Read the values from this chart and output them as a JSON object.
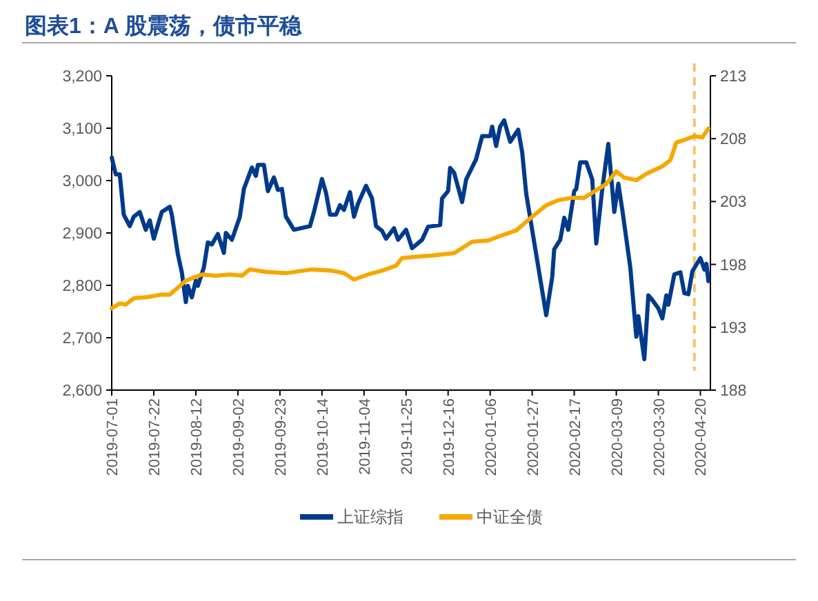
{
  "chart_data": {
    "type": "line",
    "title": "图表1：A 股震荡，债市平稳",
    "xlim": [
      "2019-07-01",
      "2020-04-25"
    ],
    "xticks": [
      "2019-07-01",
      "2019-07-22",
      "2019-08-12",
      "2019-09-02",
      "2019-09-23",
      "2019-10-14",
      "2019-11-04",
      "2019-11-25",
      "2019-12-16",
      "2020-01-06",
      "2020-01-27",
      "2020-02-17",
      "2020-03-09",
      "2020-03-30",
      "2020-04-20"
    ],
    "ylim": [
      2600,
      3200
    ],
    "yticks": [
      {
        "value": 2600,
        "label": "2,600"
      },
      {
        "value": 2700,
        "label": "2,700"
      },
      {
        "value": 2800,
        "label": "2,800"
      },
      {
        "value": 2900,
        "label": "2,900"
      },
      {
        "value": 3000,
        "label": "3,000"
      },
      {
        "value": 3100,
        "label": "3,100"
      },
      {
        "value": 3200,
        "label": "3,200"
      }
    ],
    "y2lim": [
      188,
      213
    ],
    "y2ticks": [
      188,
      193,
      198,
      203,
      208,
      213
    ],
    "legend": "bottom",
    "ref_lines": [
      {
        "axis": "x",
        "value": "2020-04-17",
        "color": "#f7c46c",
        "line_style": "dashed"
      }
    ],
    "series": [
      {
        "name": "上证综指",
        "color": "#003a8c",
        "x": [
          "2019-07-01",
          "2019-07-03",
          "2019-07-05",
          "2019-07-07",
          "2019-07-10",
          "2019-07-12",
          "2019-07-15",
          "2019-07-18",
          "2019-07-20",
          "2019-07-22",
          "2019-07-26",
          "2019-07-30",
          "2019-07-31",
          "2019-08-03",
          "2019-08-05",
          "2019-08-07",
          "2019-08-08",
          "2019-08-10",
          "2019-08-12",
          "2019-08-13",
          "2019-08-16",
          "2019-08-18",
          "2019-08-20",
          "2019-08-23",
          "2019-08-26",
          "2019-08-27",
          "2019-08-30",
          "2019-09-03",
          "2019-09-05",
          "2019-09-09",
          "2019-09-11",
          "2019-09-12",
          "2019-09-15",
          "2019-09-17",
          "2019-09-20",
          "2019-09-22",
          "2019-09-24",
          "2019-09-26",
          "2019-09-30",
          "2019-10-08",
          "2019-10-10",
          "2019-10-14",
          "2019-10-16",
          "2019-10-18",
          "2019-10-21",
          "2019-10-23",
          "2019-10-25",
          "2019-10-28",
          "2019-10-30",
          "2019-11-01",
          "2019-11-05",
          "2019-11-08",
          "2019-11-10",
          "2019-11-13",
          "2019-11-15",
          "2019-11-19",
          "2019-11-21",
          "2019-11-25",
          "2019-11-28",
          "2019-11-29",
          "2019-12-03",
          "2019-12-06",
          "2019-12-12",
          "2019-12-13",
          "2019-12-16",
          "2019-12-17",
          "2019-12-19",
          "2019-12-23",
          "2019-12-25",
          "2019-12-30",
          "2020-01-02",
          "2020-01-06",
          "2020-01-07",
          "2020-01-09",
          "2020-01-11",
          "2020-01-13",
          "2020-01-16",
          "2020-01-20",
          "2020-01-22",
          "2020-01-24",
          "2020-02-03",
          "2020-02-06",
          "2020-02-07",
          "2020-02-10",
          "2020-02-12",
          "2020-02-14",
          "2020-02-17",
          "2020-02-18",
          "2020-02-20",
          "2020-02-23",
          "2020-02-26",
          "2020-02-28",
          "2020-03-02",
          "2020-03-05",
          "2020-03-08",
          "2020-03-10",
          "2020-03-12",
          "2020-03-16",
          "2020-03-19",
          "2020-03-20",
          "2020-03-23",
          "2020-03-25",
          "2020-03-27",
          "2020-03-30",
          "2020-04-01",
          "2020-04-03",
          "2020-04-04",
          "2020-04-07",
          "2020-04-10",
          "2020-04-12",
          "2020-04-14",
          "2020-04-16",
          "2020-04-20",
          "2020-04-22",
          "2020-04-23",
          "2020-04-24"
        ],
        "values": [
          3044,
          3012,
          3012,
          2935,
          2913,
          2931,
          2940,
          2906,
          2924,
          2889,
          2940,
          2950,
          2935,
          2860,
          2825,
          2768,
          2799,
          2777,
          2809,
          2799,
          2834,
          2882,
          2878,
          2898,
          2862,
          2900,
          2887,
          2931,
          2984,
          3025,
          3009,
          3030,
          3030,
          2980,
          3006,
          2982,
          2984,
          2931,
          2906,
          2913,
          2940,
          3003,
          2977,
          2935,
          2935,
          2953,
          2944,
          2978,
          2931,
          2956,
          2990,
          2966,
          2913,
          2904,
          2889,
          2909,
          2887,
          2906,
          2871,
          2874,
          2887,
          2912,
          2915,
          2966,
          2980,
          3024,
          3015,
          2959,
          3002,
          3041,
          3085,
          3085,
          3103,
          3066,
          3103,
          3115,
          3074,
          3097,
          3054,
          2975,
          2743,
          2816,
          2869,
          2887,
          2929,
          2906,
          2980,
          2984,
          3035,
          3035,
          3002,
          2880,
          2984,
          3070,
          2940,
          2994,
          2944,
          2834,
          2702,
          2741,
          2659,
          2781,
          2772,
          2756,
          2737,
          2781,
          2763,
          2821,
          2825,
          2785,
          2783,
          2827,
          2852,
          2830,
          2841,
          2808
        ]
      },
      {
        "name": "中证全债",
        "color": "#f5a800",
        "axis": "y2",
        "x": [
          "2019-07-01",
          "2019-07-05",
          "2019-07-08",
          "2019-07-12",
          "2019-07-19",
          "2019-07-26",
          "2019-07-30",
          "2019-08-07",
          "2019-08-15",
          "2019-08-22",
          "2019-08-29",
          "2019-09-04",
          "2019-09-08",
          "2019-09-16",
          "2019-09-26",
          "2019-10-09",
          "2019-10-19",
          "2019-10-25",
          "2019-10-30",
          "2019-11-06",
          "2019-11-13",
          "2019-11-20",
          "2019-11-23",
          "2019-11-29",
          "2019-12-08",
          "2019-12-19",
          "2019-12-28",
          "2020-01-05",
          "2020-01-10",
          "2020-01-19",
          "2020-01-27",
          "2020-02-03",
          "2020-02-09",
          "2020-02-16",
          "2020-02-22",
          "2020-02-29",
          "2020-03-04",
          "2020-03-09",
          "2020-03-13",
          "2020-03-19",
          "2020-03-24",
          "2020-04-01",
          "2020-04-05",
          "2020-04-08",
          "2020-04-12",
          "2020-04-17",
          "2020-04-21",
          "2020-04-24"
        ],
        "values": [
          194.5,
          194.9,
          194.8,
          195.3,
          195.4,
          195.6,
          195.6,
          196.7,
          197.2,
          197.1,
          197.2,
          197.1,
          197.6,
          197.4,
          197.3,
          197.6,
          197.5,
          197.3,
          196.8,
          197.2,
          197.5,
          197.9,
          198.5,
          198.6,
          198.7,
          198.9,
          199.8,
          199.9,
          200.2,
          200.7,
          201.8,
          202.7,
          203.1,
          203.3,
          203.3,
          204.0,
          204.4,
          205.4,
          204.9,
          204.7,
          205.2,
          205.8,
          206.3,
          207.7,
          207.9,
          208.2,
          208.1,
          208.8
        ]
      }
    ]
  }
}
